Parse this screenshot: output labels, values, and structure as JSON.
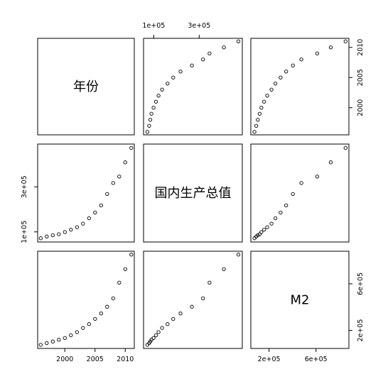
{
  "chart_data": {
    "type": "scatter",
    "variables": [
      "年份",
      "国内生产总值",
      "M2"
    ],
    "year": [
      1996,
      1997,
      1998,
      1999,
      2000,
      2001,
      2002,
      2003,
      2004,
      2005,
      2006,
      2007,
      2008,
      2009,
      2010,
      2011
    ],
    "gdp": [
      71800,
      79700,
      84800,
      89700,
      99200,
      109700,
      121000,
      136600,
      160700,
      185900,
      217700,
      268000,
      316800,
      345600,
      408900,
      472900
    ],
    "m2": [
      76100,
      90900,
      104500,
      119900,
      134600,
      158300,
      185000,
      221200,
      254100,
      298800,
      345600,
      403400,
      475200,
      610200,
      725900,
      851600
    ],
    "axes": {
      "year": {
        "range": [
          1995.5,
          2011.5
        ],
        "ticks": [
          2000,
          2005,
          2010
        ],
        "labels": [
          "2000",
          "2005",
          "2010"
        ]
      },
      "gdp": {
        "range": [
          55000,
          490000
        ],
        "ticks": [
          100000,
          300000
        ],
        "labels": [
          "1e+05",
          "3e+05"
        ]
      },
      "m2": {
        "range": [
          45000,
          880000
        ],
        "ticks": [
          200000,
          600000
        ],
        "labels": [
          "2e+05",
          "6e+05"
        ]
      },
      "m2_right": {
        "ticks": [
          200000,
          600000
        ],
        "labels": [
          "2e+05",
          "6e+05"
        ]
      }
    },
    "grid": false,
    "legend": "none"
  }
}
